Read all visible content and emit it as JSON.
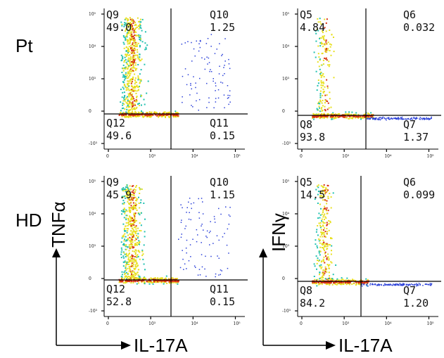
{
  "rows": [
    {
      "label": "Pt"
    },
    {
      "label": "HD"
    }
  ],
  "panels": [
    {
      "row": 0,
      "col": 0,
      "y_marker": "TNFα",
      "quadrants": {
        "ul": {
          "name": "Q9",
          "value": "49.0"
        },
        "ur": {
          "name": "Q10",
          "value": "1.25"
        },
        "ll": {
          "name": "Q12",
          "value": "49.6"
        },
        "lr": {
          "name": "Q11",
          "value": "0.15"
        }
      },
      "x_ticks": [
        "0",
        "10³",
        "10⁴",
        "10⁵"
      ],
      "y_ticks": [
        "10⁵",
        "10⁴",
        "10³",
        "0",
        "-10³"
      ]
    },
    {
      "row": 0,
      "col": 1,
      "y_marker": "IFNγ",
      "quadrants": {
        "ul": {
          "name": "Q5",
          "value": "4.84"
        },
        "ur": {
          "name": "Q6",
          "value": "0.032"
        },
        "ll": {
          "name": "Q8",
          "value": "93.8"
        },
        "lr": {
          "name": "Q7",
          "value": "1.37"
        }
      },
      "x_ticks": [
        "0",
        "10³",
        "10⁴",
        "10⁵"
      ],
      "y_ticks": [
        "10⁵",
        "10⁴",
        "10³",
        "0",
        "-10³"
      ]
    },
    {
      "row": 1,
      "col": 0,
      "y_marker": "TNFα",
      "quadrants": {
        "ul": {
          "name": "Q9",
          "value": "45.9"
        },
        "ur": {
          "name": "Q10",
          "value": "1.15"
        },
        "ll": {
          "name": "Q12",
          "value": "52.8"
        },
        "lr": {
          "name": "Q11",
          "value": "0.15"
        }
      },
      "x_ticks": [
        "0",
        "10³",
        "10⁴",
        "10⁵"
      ],
      "y_ticks": [
        "10⁵",
        "10⁴",
        "10³",
        "0",
        "-10³"
      ]
    },
    {
      "row": 1,
      "col": 1,
      "y_marker": "IFNγ",
      "quadrants": {
        "ul": {
          "name": "Q5",
          "value": "14.5"
        },
        "ur": {
          "name": "Q6",
          "value": "0.099"
        },
        "ll": {
          "name": "Q8",
          "value": "84.2"
        },
        "lr": {
          "name": "Q7",
          "value": "1.20"
        }
      },
      "x_ticks": [
        "0",
        "10³",
        "10⁴",
        "10⁵"
      ],
      "y_ticks": [
        "10⁵",
        "10⁴",
        "10³",
        "0",
        "-10³"
      ]
    }
  ],
  "axes": {
    "left": {
      "x_title": "IL-17A",
      "y_title": "TNFα"
    },
    "right": {
      "x_title": "IL-17A",
      "y_title": "IFNγ"
    }
  },
  "colors": {
    "density_low": "#2a3fd8",
    "density_mid": "#20c0b0",
    "density_high": "#e8e020",
    "density_peak": "#d83010",
    "gate_line": "#000000"
  }
}
